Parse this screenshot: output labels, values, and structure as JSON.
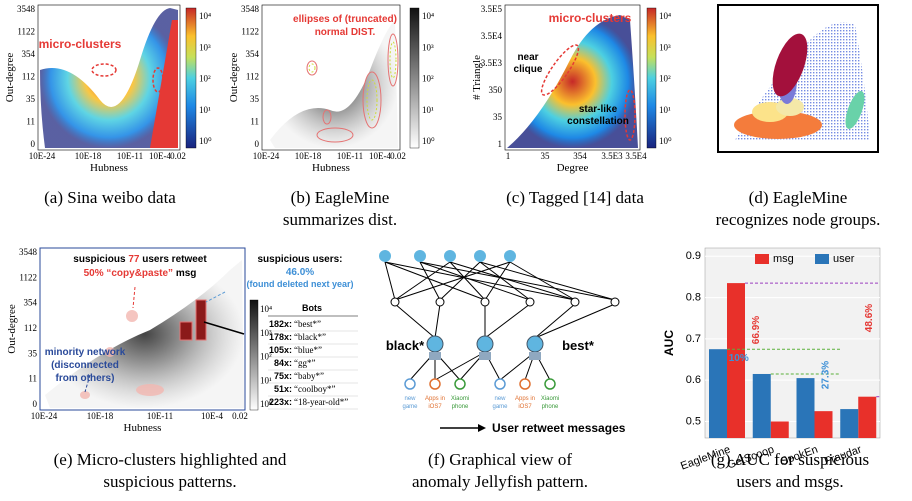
{
  "panels": {
    "a": {
      "caption": [
        "(a) Sina weibo data"
      ],
      "ylabel": "Out-degree",
      "xlabel": "Hubness",
      "yticks": [
        3548,
        1122,
        354,
        112,
        35,
        11,
        0
      ],
      "xticks": [
        "10E-24",
        "10E-18",
        "10E-11",
        "10E-4",
        "0.02"
      ],
      "annotation": "micro-clusters",
      "colorbar": [
        "10⁴",
        "10³",
        "10²",
        "10¹",
        "10⁰"
      ]
    },
    "b": {
      "caption": [
        "(b) EagleMine",
        "summarizes dist."
      ],
      "ylabel": "Out-degree",
      "xlabel": "Hubness",
      "yticks": [
        3548,
        1122,
        354,
        112,
        35,
        11,
        0
      ],
      "xticks": [
        "10E-24",
        "10E-18",
        "10E-11",
        "10E-4",
        "0.02"
      ],
      "annotation": [
        "ellipses of (truncated)",
        "normal DIST."
      ],
      "colorbar": [
        "10⁴",
        "10³",
        "10²",
        "10¹",
        "10⁰"
      ]
    },
    "c": {
      "caption": [
        "(c) Tagged [14] data"
      ],
      "ylabel": "# Triangle",
      "xlabel": "Degree",
      "yticks": [
        "3.5E5",
        "3.5E4",
        "3.5E3",
        "350",
        "35",
        "1"
      ],
      "xticks": [
        "1",
        "35",
        "354",
        "3.5E3",
        "3.5E4"
      ],
      "annotation": "micro-clusters",
      "near_clique": [
        "near",
        "clique"
      ],
      "star": [
        "star-like",
        "constellation"
      ],
      "colorbar": [
        "10⁴",
        "10³",
        "10²",
        "10¹",
        "10⁰"
      ]
    },
    "d": {
      "caption": [
        "(d) EagleMine",
        "recognizes node groups."
      ]
    },
    "e": {
      "caption": [
        "(e) Micro-clusters highlighted and",
        "suspicious patterns."
      ],
      "ylabel": "Out-degree",
      "xlabel": "Hubness",
      "yticks": [
        3548,
        1122,
        354,
        112,
        35,
        11,
        0
      ],
      "xticks": [
        "10E-24",
        "10E-18",
        "10E-11",
        "10E-4",
        "0.02"
      ],
      "colorbar": [
        "10⁴",
        "10³",
        "10²",
        "10¹",
        "10⁰"
      ],
      "headline": [
        "suspicious ",
        "77",
        " users retweet"
      ],
      "copy": [
        "50% “copy&paste”",
        " msg"
      ],
      "suspicious_users": "suspicious users:",
      "deleted": [
        "46.0%",
        "(found deleted next year)"
      ],
      "minority": [
        "minority network",
        "(disconnected",
        "from others)"
      ],
      "bots_title": "Bots",
      "bots": [
        [
          "182x:",
          "“best*”"
        ],
        [
          "178x:",
          "“black*”"
        ],
        [
          "105x:",
          "“blue*”"
        ],
        [
          "84x:",
          "“gg*”"
        ],
        [
          "75x:",
          "“baby*”"
        ],
        [
          "51x:",
          "“coolboy*”"
        ],
        [
          "223x:",
          "“18-year-old*”"
        ]
      ]
    },
    "f": {
      "caption": [
        "(f) Graphical view of",
        "anomaly Jellyfish pattern."
      ],
      "left_label": "black*",
      "right_label": "best*",
      "items": [
        [
          "new",
          "game"
        ],
        [
          "Apps in",
          "iOS7"
        ],
        [
          "Xiaomi",
          "phone"
        ],
        [
          "new",
          "game"
        ],
        [
          "Apps in",
          "iOS7"
        ],
        [
          "Xiaomi",
          "phone"
        ]
      ],
      "legend": "User retweet messages"
    },
    "g": {
      "caption": [
        "(g) AUC for suspicious",
        "users and msgs."
      ],
      "ylabel": "AUC",
      "ylim": [
        0.46,
        0.92
      ],
      "yticks": [
        0.5,
        0.6,
        0.7,
        0.8,
        0.9
      ],
      "categories": [
        "EagleMine",
        "GetScoop",
        "SpokEn",
        "Fraudar"
      ],
      "series": [
        {
          "name": "msg",
          "color": "#e8302a",
          "values": [
            0.835,
            0.5,
            0.525,
            0.56
          ]
        },
        {
          "name": "user",
          "color": "#2a75b8",
          "values": [
            0.675,
            0.615,
            0.605,
            0.53
          ]
        }
      ],
      "annotations": [
        "66.9%",
        "48.6%",
        "10%",
        "27.3%"
      ]
    }
  }
}
